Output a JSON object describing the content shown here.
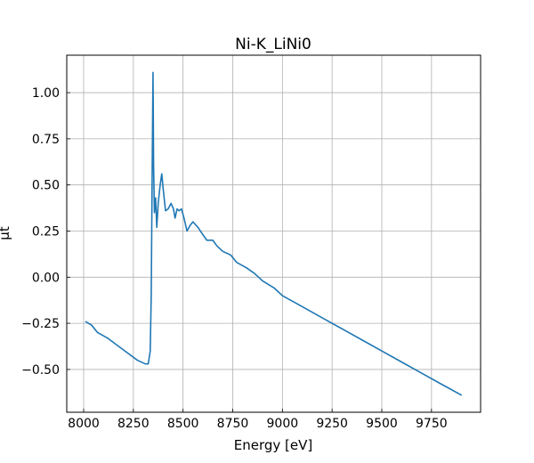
{
  "chart_data": {
    "type": "line",
    "title": "Ni-K_LiNi0",
    "xlabel": "Energy [eV]",
    "ylabel": "μt",
    "x": [
      8009,
      8040,
      8070,
      8120,
      8170,
      8220,
      8270,
      8310,
      8325,
      8335,
      8340,
      8345,
      8349,
      8352,
      8356,
      8362,
      8368,
      8375,
      8385,
      8393,
      8400,
      8412,
      8425,
      8440,
      8452,
      8460,
      8470,
      8480,
      8492,
      8505,
      8520,
      8535,
      8550,
      8575,
      8600,
      8620,
      8650,
      8670,
      8700,
      8740,
      8770,
      8820,
      8860,
      8900,
      8960,
      9000,
      9100,
      9200,
      9300,
      9400,
      9500,
      9600,
      9700,
      9800,
      9902
    ],
    "values": [
      -0.24,
      -0.26,
      -0.3,
      -0.33,
      -0.37,
      -0.41,
      -0.45,
      -0.47,
      -0.47,
      -0.4,
      -0.1,
      0.6,
      1.11,
      0.6,
      0.35,
      0.43,
      0.27,
      0.4,
      0.5,
      0.56,
      0.48,
      0.36,
      0.37,
      0.4,
      0.37,
      0.32,
      0.37,
      0.36,
      0.37,
      0.32,
      0.25,
      0.28,
      0.3,
      0.27,
      0.23,
      0.2,
      0.2,
      0.17,
      0.14,
      0.12,
      0.08,
      0.05,
      0.02,
      -0.02,
      -0.06,
      -0.1,
      -0.16,
      -0.22,
      -0.28,
      -0.34,
      -0.4,
      -0.46,
      -0.52,
      -0.58,
      -0.64
    ],
    "color": "#1f77b4",
    "xlim": [
      7915,
      9997
    ],
    "ylim": [
      -0.732,
      1.203
    ],
    "xticks": [
      8000,
      8250,
      8500,
      8750,
      9000,
      9250,
      9500,
      9750
    ],
    "yticks": [
      {
        "value": -0.5,
        "label": "−0.50"
      },
      {
        "value": -0.25,
        "label": "−0.25"
      },
      {
        "value": 0,
        "label": "0.00"
      },
      {
        "value": 0.25,
        "label": "0.25"
      },
      {
        "value": 0.5,
        "label": "0.50"
      },
      {
        "value": 0.75,
        "label": "0.75"
      },
      {
        "value": 1,
        "label": "1.00"
      }
    ],
    "grid": true
  }
}
